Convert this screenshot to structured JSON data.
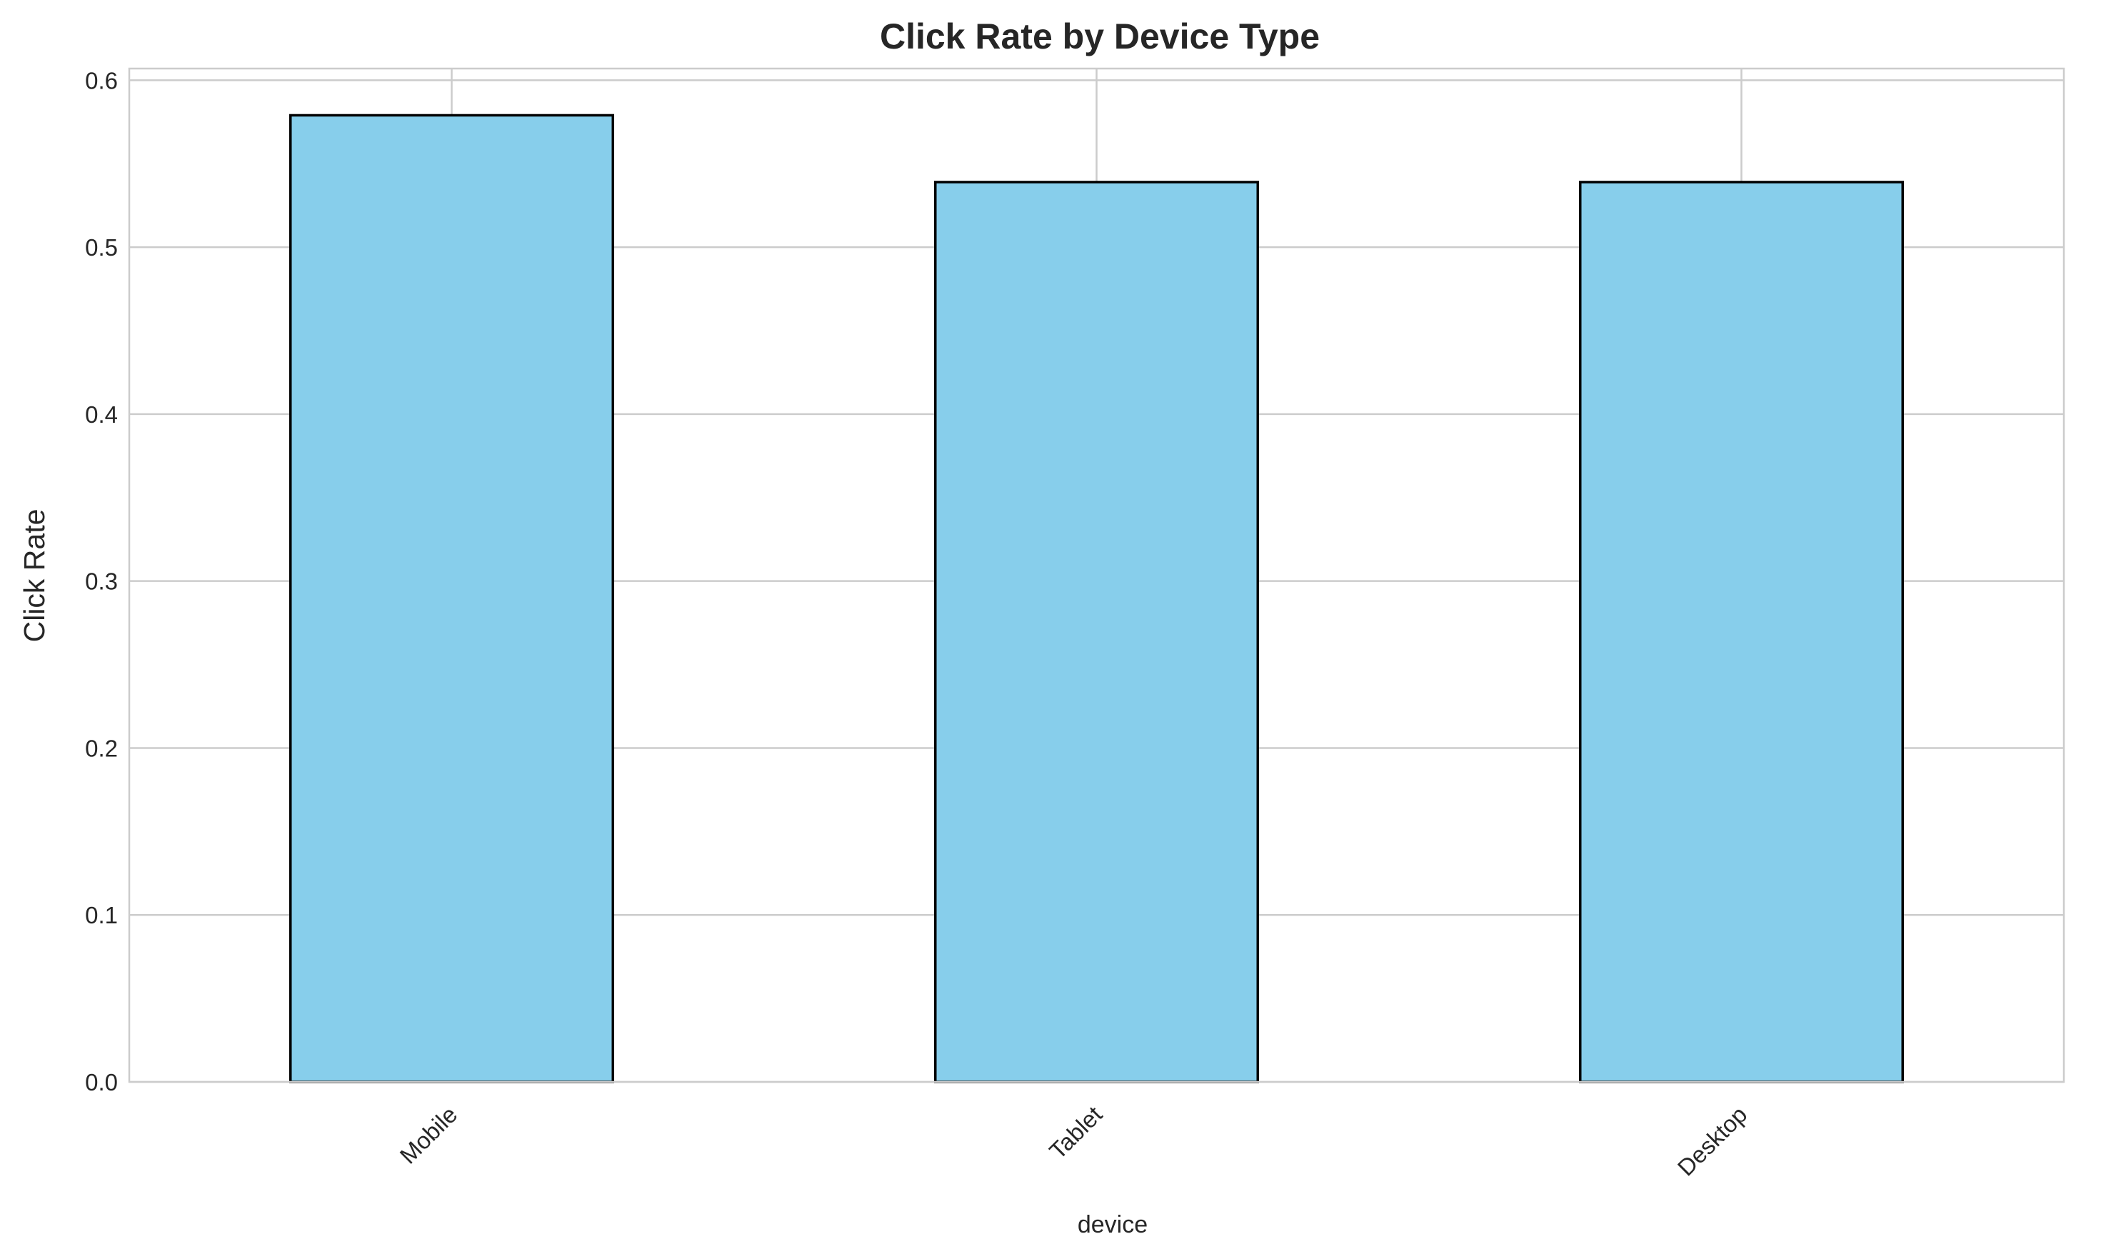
{
  "chart_data": {
    "type": "bar",
    "title": "Click Rate by Device Type",
    "xlabel": "device",
    "ylabel": "Click Rate",
    "categories": [
      "Mobile",
      "Tablet",
      "Desktop"
    ],
    "values": [
      0.579,
      0.539,
      0.539
    ],
    "ylim": [
      0,
      0.607
    ],
    "yticks": [
      0.0,
      0.1,
      0.2,
      0.3,
      0.4,
      0.5,
      0.6
    ],
    "ytick_labels": [
      "0.0",
      "0.1",
      "0.2",
      "0.3",
      "0.4",
      "0.5",
      "0.6"
    ],
    "grid": true,
    "bar_color": "#87CEEB",
    "bar_edge_color": "#000000",
    "xtick_rotation": "45deg"
  }
}
